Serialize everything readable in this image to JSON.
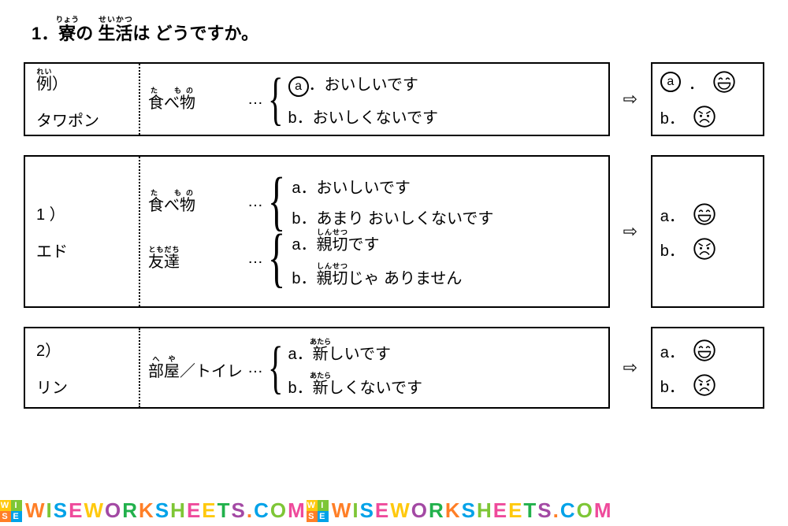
{
  "heading_parts": {
    "num": "1．",
    "w1": {
      "base": "寮",
      "ruby": "りょう"
    },
    "w2": "の ",
    "w3": {
      "base": "生活",
      "ruby": "せいかつ"
    },
    "w4": "は どうですか。"
  },
  "questions": [
    {
      "label_top": {
        "base": "例",
        "ruby": "れい",
        "suffix": "）"
      },
      "label_bottom": "タワポン",
      "height": "small",
      "topics": [
        {
          "word": {
            "base": "食べ物",
            "ruby": "た　もの",
            "ruby_offset": 0
          },
          "brace": "s",
          "choices": [
            {
              "mark_circled": true,
              "mark": "a",
              "text": "．おいしいです"
            },
            {
              "mark_circled": false,
              "mark": "b",
              "text": "．おいしくないです"
            }
          ]
        }
      ],
      "answers": [
        {
          "mark_circled": true,
          "mark": "a",
          "face": "happy"
        },
        {
          "mark_circled": false,
          "mark": "b",
          "face": "angry"
        }
      ]
    },
    {
      "label_top": "1 ）",
      "label_bottom": "エド",
      "height": "tall",
      "topics": [
        {
          "word": {
            "base": "食べ物",
            "ruby": "た　もの"
          },
          "brace": "l",
          "choices": [
            {
              "mark_circled": false,
              "mark": "a",
              "text": "．おいしいです"
            },
            {
              "mark_circled": false,
              "mark": "b",
              "text": "．あまり おいしくないです"
            }
          ]
        },
        {
          "word": {
            "base": "友達",
            "ruby": "ともだち"
          },
          "brace": "l",
          "choices": [
            {
              "mark_circled": false,
              "mark": "a",
              "ruby": {
                "base": "親切",
                "rt": "しんせつ"
              },
              "text": "です"
            },
            {
              "mark_circled": false,
              "mark": "b",
              "ruby": {
                "base": "親切",
                "rt": "しんせつ"
              },
              "text": "じゃ ありません"
            }
          ]
        }
      ],
      "answers": [
        {
          "mark_circled": false,
          "mark": "a",
          "face": "happy"
        },
        {
          "mark_circled": false,
          "mark": "b",
          "face": "angry"
        }
      ]
    },
    {
      "label_top": "2）",
      "label_bottom": "リン",
      "height": "med",
      "topics": [
        {
          "word": {
            "base": "部屋",
            "ruby": "へや",
            "suffix": "／トイレ"
          },
          "brace": "s",
          "choices": [
            {
              "mark_circled": false,
              "mark": "a",
              "ruby": {
                "base": "新",
                "rt": "あたら"
              },
              "text": "しいです"
            },
            {
              "mark_circled": false,
              "mark": "b",
              "ruby": {
                "base": "新",
                "rt": "あたら"
              },
              "text": "しくないです"
            }
          ]
        }
      ],
      "answers": [
        {
          "mark_circled": false,
          "mark": "a",
          "face": "happy"
        },
        {
          "mark_circled": false,
          "mark": "b",
          "face": "angry"
        }
      ]
    }
  ],
  "symbols": {
    "dots": "…",
    "arrow": "⇨"
  },
  "faces": {
    "happy": {
      "stroke": "#000",
      "mouth": "grin"
    },
    "angry": {
      "stroke": "#000",
      "mouth": "frown"
    }
  },
  "watermark": {
    "text": "WISEWORKSHEETS.COM",
    "colors": [
      "#ff7f27",
      "#7ec636",
      "#00a2e8",
      "#ef4a9b",
      "#ffc90e",
      "#a349a4",
      "#22b14c",
      "#ff7f27",
      "#00a2e8",
      "#7ec636",
      "#ef4a9b",
      "#ffc90e",
      "#22b14c",
      "#a349a4",
      "#ff7f27",
      "#00a2e8",
      "#7ec636",
      "#ef4a9b",
      "#666"
    ],
    "logo": {
      "letters": [
        "W",
        "I",
        "S",
        "E"
      ],
      "bg": [
        "#ffc90e",
        "#7ec636",
        "#ff7f27",
        "#00a2e8"
      ]
    },
    "repeat": 2
  }
}
